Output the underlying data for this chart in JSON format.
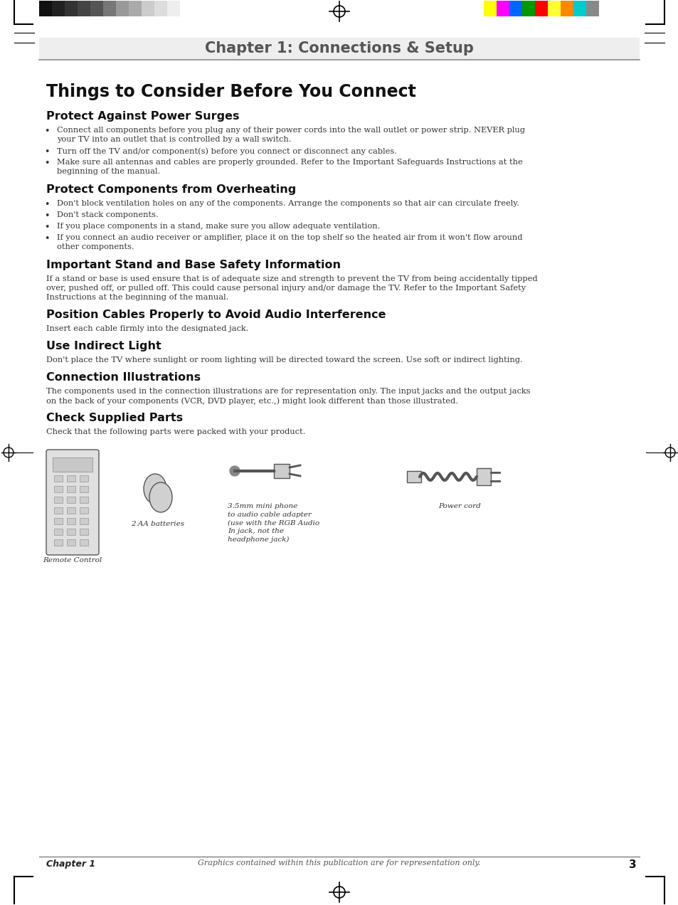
{
  "page_bg": "#ffffff",
  "chapter_title": "Chapter 1: Connections & Setup",
  "page_title": "Things to Consider Before You Connect",
  "sections": [
    {
      "heading": "Protect Against Power Surges",
      "bullets": [
        "Connect all components before you plug any of their power cords into the wall outlet or power strip. NEVER plug\nyour TV into an outlet that is controlled by a wall switch.",
        "Turn off the TV and/or component(s) before you connect or disconnect any cables.",
        "Make sure all antennas and cables are properly grounded. Refer to the Important Safeguards Instructions at the\nbeginning of the manual."
      ]
    },
    {
      "heading": "Protect Components from Overheating",
      "bullets": [
        "Don't block ventilation holes on any of the components. Arrange the components so that air can circulate freely.",
        "Don't stack components.",
        "If you place components in a stand, make sure you allow adequate ventilation.",
        "If you connect an audio receiver or amplifier, place it on the top shelf so the heated air from it won't flow around\nother components."
      ]
    },
    {
      "heading": "Important Stand and Base Safety Information",
      "body": "If a stand or base is used ensure that is of adequate size and strength to prevent the TV from being accidentally tipped\nover, pushed off, or pulled off. This could cause personal injury and/or damage the TV. Refer to the Important Safety\nInstructions at the beginning of the manual."
    },
    {
      "heading": "Position Cables Properly to Avoid Audio Interference",
      "body": "Insert each cable firmly into the designated jack."
    },
    {
      "heading": "Use Indirect Light",
      "body": "Don't place the TV where sunlight or room lighting will be directed toward the screen. Use soft or indirect lighting."
    },
    {
      "heading": "Connection Illustrations",
      "body": "The components used in the connection illustrations are for representation only. The input jacks and the output jacks\non the back of your components (VCR, DVD player, etc.,) might look different than those illustrated."
    },
    {
      "heading": "Check Supplied Parts",
      "body": "Check that the following parts were packed with your product."
    }
  ],
  "footer_chapter": "Chapter 1",
  "footer_center": "Graphics contained within this publication are for representation only.",
  "footer_page": "3",
  "left_bars": [
    "#111111",
    "#222222",
    "#333333",
    "#444444",
    "#555555",
    "#777777",
    "#999999",
    "#aaaaaa",
    "#cccccc",
    "#dddddd",
    "#eeeeee"
  ],
  "right_bars": [
    "#ffff00",
    "#ff00ff",
    "#0066ff",
    "#009900",
    "#ff0000",
    "#ffff33",
    "#ff8800",
    "#00cccc",
    "#888888"
  ]
}
